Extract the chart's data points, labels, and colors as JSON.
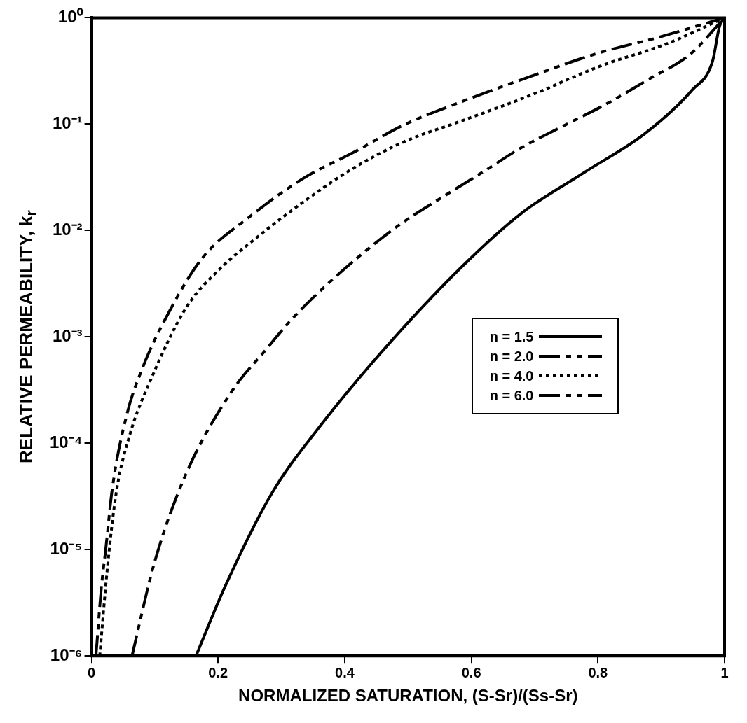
{
  "chart_data": {
    "type": "line",
    "xlabel": "NORMALIZED SATURATION, (S-Sr)/(Ss-Sr)",
    "ylabel": "RELATIVE PERMEABILITY, k$_{r}$",
    "log": "y",
    "grid": false,
    "legend": "right",
    "marker": "none",
    "xlim": [
      0,
      1
    ],
    "xticks": [
      0,
      0.2,
      0.4,
      0.6,
      0.8,
      1
    ],
    "ylim": [
      1e-06,
      1
    ],
    "yticks": [
      {
        "value": 1e-06,
        "label": "10⁻⁶"
      },
      {
        "value": 1e-05,
        "label": "10⁻⁵"
      },
      {
        "value": 0.0001,
        "label": "10⁻⁴"
      },
      {
        "value": 0.001,
        "label": "10⁻³"
      },
      {
        "value": 0.01,
        "label": "10⁻²"
      },
      {
        "value": 0.1,
        "label": "10⁻¹"
      },
      {
        "value": 1,
        "label": "10⁰"
      }
    ],
    "series": [
      {
        "name": "n = 1.5",
        "color": "#000000",
        "line_style": "solid",
        "x": [
          0.165,
          0.211,
          0.285,
          0.357,
          0.46,
          0.584,
          0.679,
          0.778,
          0.876,
          0.949,
          0.981,
          0.992,
          1
        ],
        "values": [
          1e-06,
          4.5e-06,
          3.4e-05,
          0.000135,
          0.00074,
          0.0045,
          0.0145,
          0.035,
          0.083,
          0.21,
          0.39,
          0.83,
          1
        ]
      },
      {
        "name": "n = 2.0",
        "color": "#000000",
        "line_style": "dashed",
        "x": [
          0.064,
          0.099,
          0.149,
          0.222,
          0.274,
          0.318,
          0.372,
          0.43,
          0.49,
          0.548,
          0.62,
          0.679,
          0.748,
          0.81,
          0.883,
          0.945,
          1
        ],
        "values": [
          1e-06,
          7.4e-06,
          5.1e-05,
          0.00031,
          0.00074,
          0.0015,
          0.0031,
          0.0062,
          0.0117,
          0.0195,
          0.036,
          0.06,
          0.098,
          0.151,
          0.27,
          0.45,
          1
        ]
      },
      {
        "name": "n = 4.0",
        "color": "#000000",
        "line_style": "dotted",
        "x": [
          0.013,
          0.025,
          0.039,
          0.061,
          0.094,
          0.149,
          0.2,
          0.258,
          0.335,
          0.412,
          0.493,
          0.584,
          0.693,
          0.803,
          0.912,
          1
        ],
        "values": [
          1e-06,
          6.6e-06,
          3.4e-05,
          0.000123,
          0.0004,
          0.00186,
          0.0042,
          0.0083,
          0.0186,
          0.038,
          0.068,
          0.107,
          0.186,
          0.35,
          0.58,
          1
        ]
      },
      {
        "name": "n = 6.0",
        "color": "#000000",
        "line_style": "dashed",
        "x": [
          0.007,
          0.016,
          0.022,
          0.033,
          0.055,
          0.08,
          0.124,
          0.175,
          0.248,
          0.335,
          0.416,
          0.493,
          0.584,
          0.693,
          0.803,
          0.894,
          1
        ],
        "values": [
          1e-06,
          4.7e-06,
          9.5e-06,
          3.8e-05,
          0.000178,
          0.0005,
          0.00178,
          0.0055,
          0.0132,
          0.031,
          0.055,
          0.098,
          0.162,
          0.28,
          0.47,
          0.65,
          1
        ]
      }
    ]
  }
}
